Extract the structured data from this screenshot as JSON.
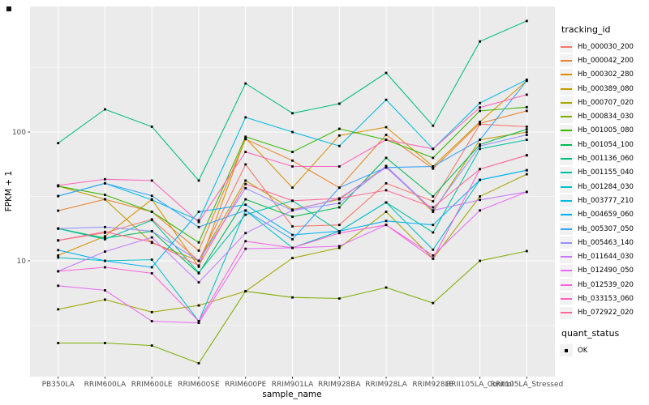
{
  "chart_data": {
    "type": "line",
    "title": "",
    "xlabel": "sample_name",
    "ylabel": "FPKM + 1",
    "yscale": "log10",
    "ylim": [
      1.26,
      950
    ],
    "grid": true,
    "legend_position": "right",
    "legend_title": "tracking_id",
    "legend2_title": "quant_status",
    "legend2_items": [
      {
        "label": "OK"
      }
    ],
    "panel_background": "#EBEBEB",
    "point_color": "#000000",
    "yticks": [
      {
        "value": 100,
        "label": "100"
      },
      {
        "value": 10,
        "label": "10"
      }
    ],
    "minor_gridline_values": [
      3.162,
      31.62,
      316.2
    ],
    "categories": [
      "PB350LA",
      "RRIM600LA",
      "RRIM600LE",
      "RRIM600SE",
      "RRIM600PE",
      "RRIM901LA",
      "RRIM928BA",
      "RRIM928LA",
      "RRIM928LE",
      "RRII105LA_Control",
      "RRII105LA_Stressed"
    ],
    "series": [
      {
        "name": "Hb_000030_200",
        "color": "#F8766D",
        "values": [
          14.4,
          16.5,
          21,
          10,
          56,
          18.5,
          19,
          40,
          29,
          115,
          110
        ]
      },
      {
        "name": "Hb_000042_200",
        "color": "#EA8331",
        "values": [
          24.5,
          30,
          24,
          12,
          88,
          60,
          37,
          95,
          52,
          117,
          146
        ]
      },
      {
        "name": "Hb_000302_280",
        "color": "#D89000",
        "values": [
          11,
          15.5,
          30,
          9,
          90,
          37,
          94,
          109,
          54,
          120,
          250
        ]
      },
      {
        "name": "Hb_000389_080",
        "color": "#C09B00",
        "values": [
          38,
          30,
          13.8,
          10,
          42,
          25,
          30,
          54,
          24,
          87,
          100
        ]
      },
      {
        "name": "Hb_000707_020",
        "color": "#A3A500",
        "values": [
          4.2,
          5.0,
          4.0,
          4.5,
          5.8,
          10.5,
          12.6,
          24,
          10.4,
          31.6,
          47
        ]
      },
      {
        "name": "Hb_000834_030",
        "color": "#7CAE00",
        "values": [
          2.3,
          2.3,
          2.2,
          1.6,
          5.8,
          5.2,
          5.1,
          6.2,
          4.7,
          10,
          11.9
        ]
      },
      {
        "name": "Hb_001005_080",
        "color": "#39B600",
        "values": [
          38,
          32.5,
          24,
          13.9,
          92,
          70,
          106,
          87,
          63,
          146,
          156
        ]
      },
      {
        "name": "Hb_001054_100",
        "color": "#00BB4E",
        "values": [
          17.8,
          15,
          17,
          8,
          30,
          22,
          26,
          63,
          31.6,
          80,
          105
        ]
      },
      {
        "name": "Hb_001136_060",
        "color": "#00BF7D",
        "values": [
          82,
          150,
          110,
          42,
          238,
          140,
          166,
          288,
          112,
          505,
          728
        ]
      },
      {
        "name": "Hb_001155_040",
        "color": "#00C1A3",
        "values": [
          17.8,
          14.7,
          20.7,
          8.1,
          22.8,
          29.3,
          17,
          28.4,
          16.6,
          74,
          87
        ]
      },
      {
        "name": "Hb_001284_030",
        "color": "#00BFC4",
        "values": [
          10.6,
          10,
          10.2,
          3.4,
          24.6,
          12.6,
          17,
          28.4,
          12.2,
          42.5,
          50.5
        ]
      },
      {
        "name": "Hb_003777_210",
        "color": "#00BAE0",
        "values": [
          31.8,
          40,
          29.7,
          20.6,
          130,
          100,
          78,
          178,
          74,
          168,
          255
        ]
      },
      {
        "name": "Hb_004659_060",
        "color": "#00B0F6",
        "values": [
          12.1,
          10,
          8.9,
          24,
          27.3,
          15.9,
          17,
          20.4,
          19,
          42.5,
          50.5
        ]
      },
      {
        "name": "Hb_005307_050",
        "color": "#35A2FF",
        "values": [
          31.8,
          40,
          32,
          18.3,
          24.6,
          14.7,
          37,
          53,
          54,
          87,
          250
        ]
      },
      {
        "name": "Hb_005463_140",
        "color": "#9590FF",
        "values": [
          17.8,
          18.3,
          17,
          10,
          36.6,
          24.6,
          28,
          54.5,
          24.6,
          78,
          95
        ]
      },
      {
        "name": "Hb_011644_030",
        "color": "#C77CFF",
        "values": [
          8.3,
          11.8,
          15.2,
          6.8,
          16.4,
          24.6,
          30.5,
          53,
          24.6,
          29.7,
          34.3
        ]
      },
      {
        "name": "Hb_012490_050",
        "color": "#E76BF3",
        "values": [
          6.4,
          5.9,
          3.4,
          3.3,
          12.4,
          12.6,
          13,
          19,
          11,
          24.6,
          34.3
        ]
      },
      {
        "name": "Hb_012539_020",
        "color": "#FA62DB",
        "values": [
          8.3,
          8.9,
          8.0,
          3.4,
          14.2,
          12.6,
          16.4,
          19,
          10.4,
          51.5,
          66
        ]
      },
      {
        "name": "Hb_033153_060",
        "color": "#FF62BC",
        "values": [
          38.5,
          43,
          42,
          20,
          70,
          54,
          54,
          87,
          74,
          155,
          195
        ]
      },
      {
        "name": "Hb_072922_020",
        "color": "#FF6A98",
        "values": [
          14.4,
          16.8,
          14,
          9.2,
          39.5,
          29.3,
          30.5,
          35.3,
          26,
          51.5,
          66
        ]
      }
    ]
  }
}
